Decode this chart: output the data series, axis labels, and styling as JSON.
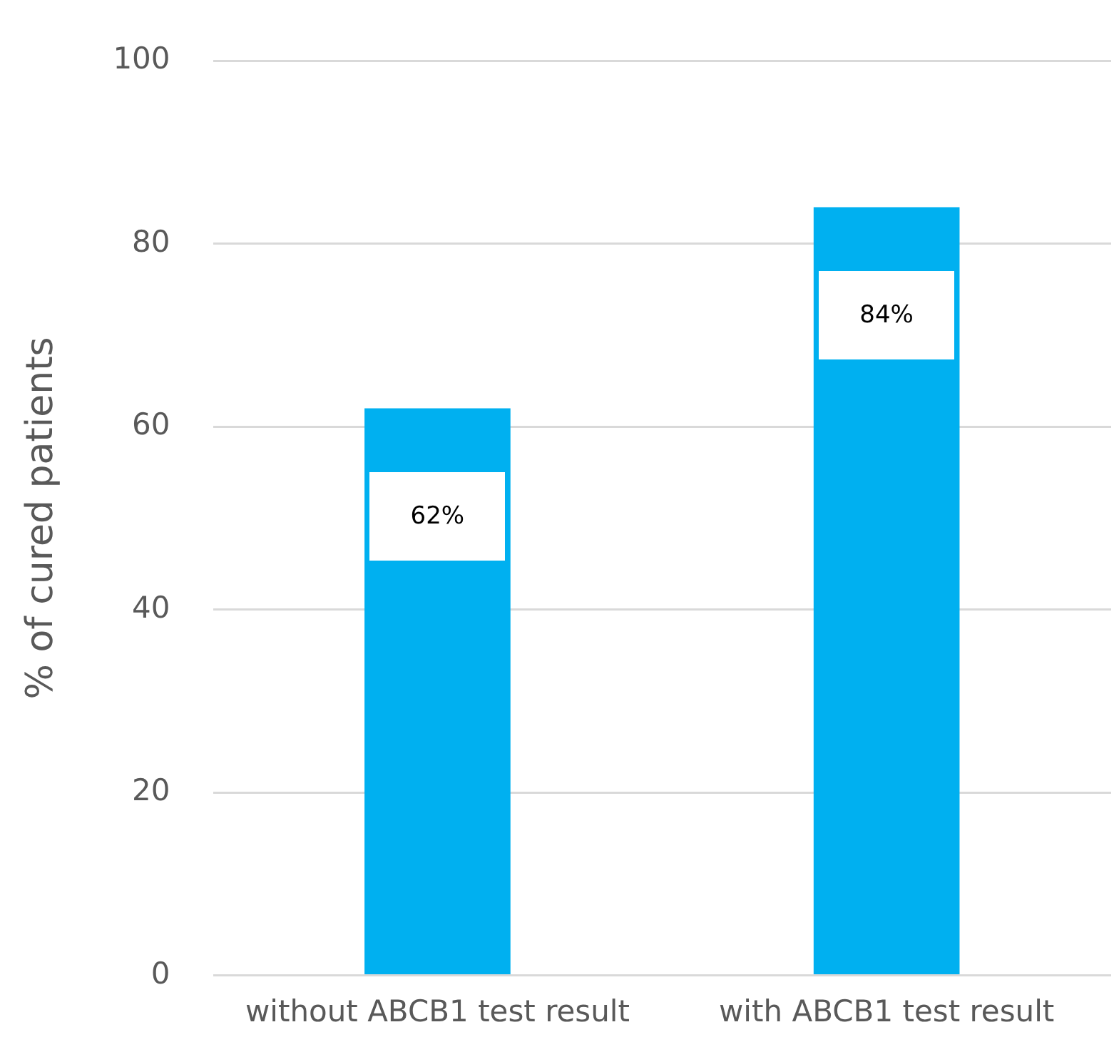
{
  "chart_data": {
    "type": "bar",
    "ylabel": "% of cured patients",
    "categories": [
      "without ABCB1 test result",
      "with ABCB1 test result"
    ],
    "values": [
      62,
      84
    ],
    "color": "#00b0f0",
    "value_labels": [
      "62%",
      "84%"
    ],
    "ylim": [
      0,
      100
    ],
    "yticks": [
      0,
      20,
      40,
      60,
      80,
      100
    ],
    "grid": "y",
    "legend": false
  }
}
